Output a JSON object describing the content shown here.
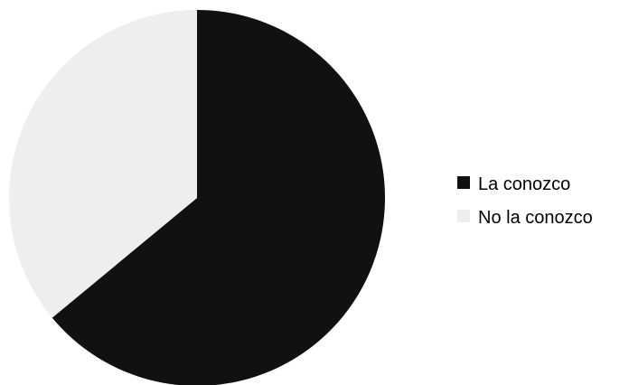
{
  "chart_data": {
    "type": "pie",
    "categories": [
      "La conozco",
      "No la conozco"
    ],
    "values": [
      64,
      36
    ],
    "colors": [
      "#111111",
      "#eeeeee"
    ],
    "start_angle_deg": 0,
    "direction": "clockwise",
    "legend_position": "right"
  }
}
